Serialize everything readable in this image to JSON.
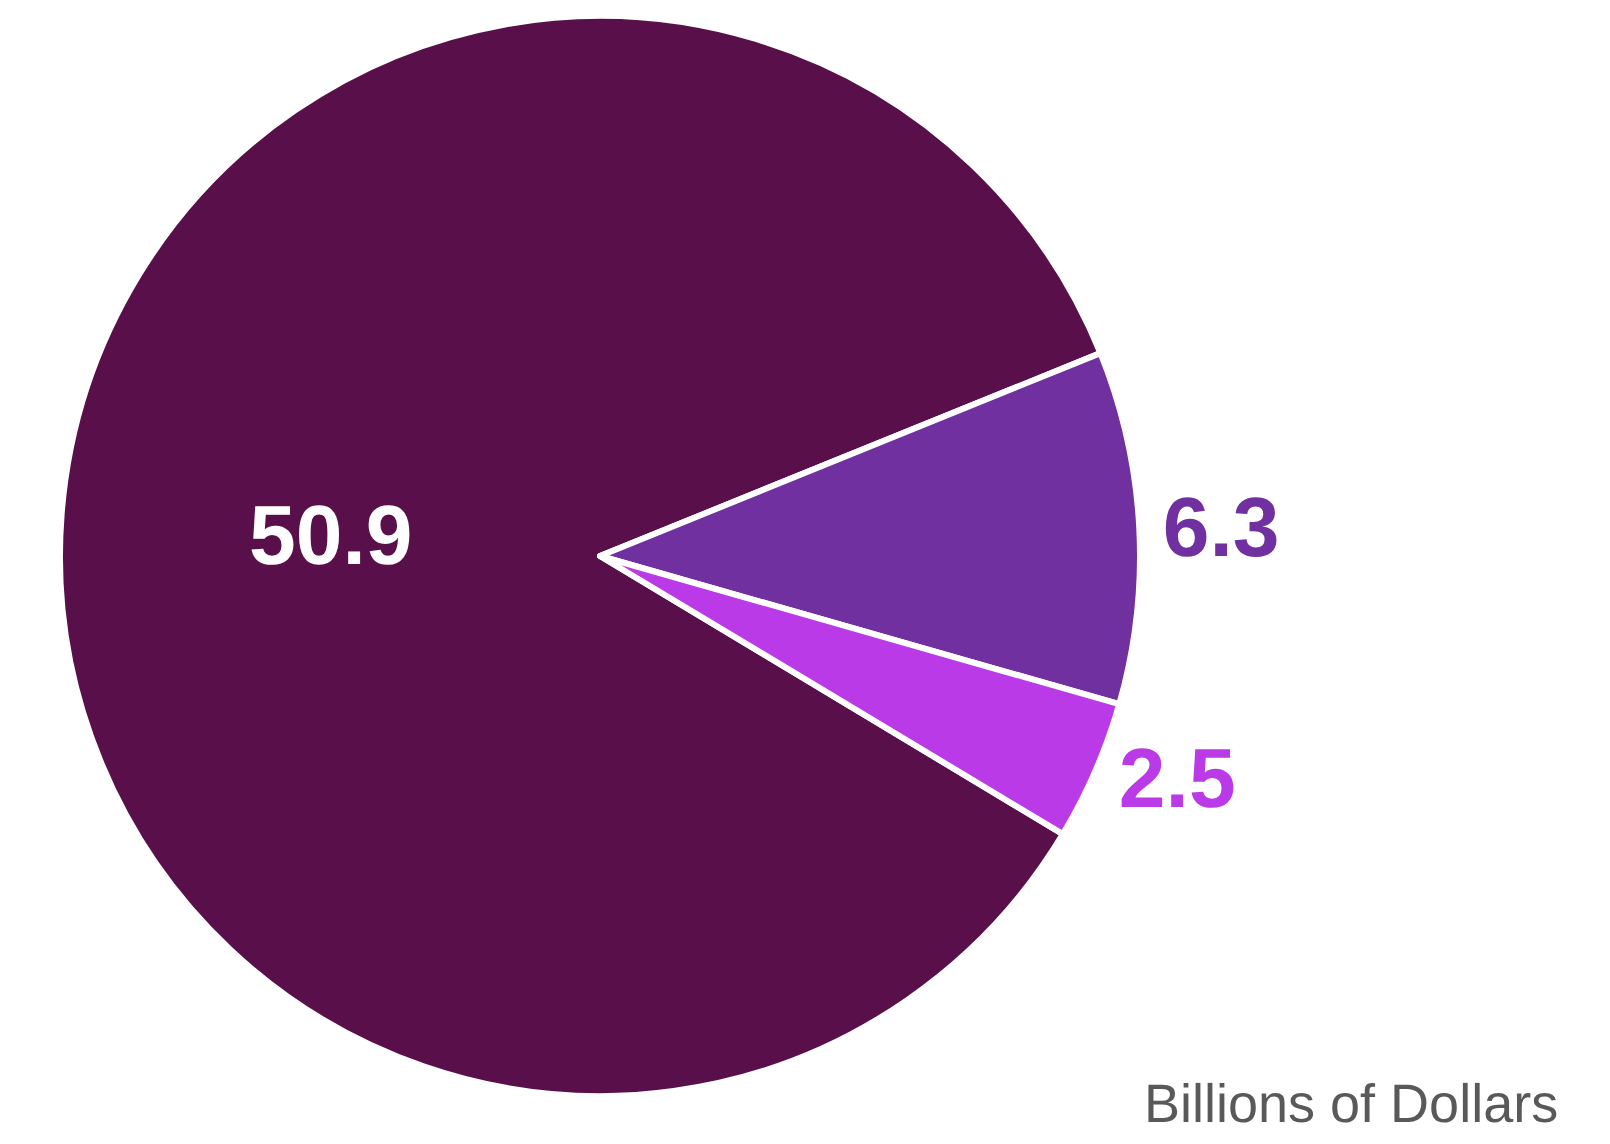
{
  "chart_data": {
    "type": "pie",
    "categories": [
      null,
      null,
      null
    ],
    "values": [
      50.9,
      6.3,
      2.5
    ],
    "colors": [
      "#590f49",
      "#7030a0",
      "#b93ae6"
    ],
    "data_labels": true,
    "annotations": [
      "Billions of Dollars"
    ]
  }
}
